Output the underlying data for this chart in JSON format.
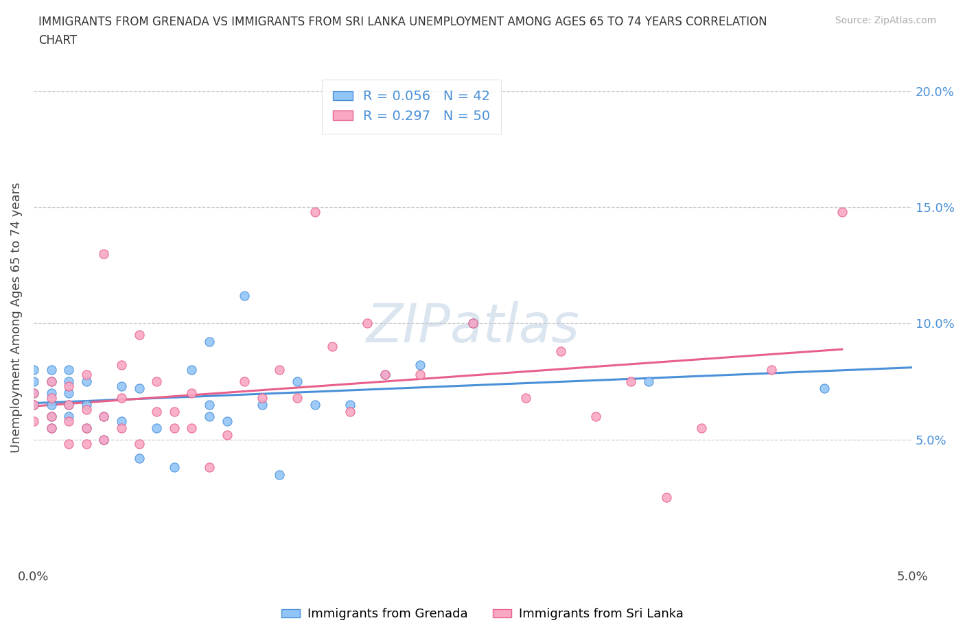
{
  "title": "IMMIGRANTS FROM GRENADA VS IMMIGRANTS FROM SRI LANKA UNEMPLOYMENT AMONG AGES 65 TO 74 YEARS CORRELATION\nCHART",
  "source_text": "Source: ZipAtlas.com",
  "ylabel": "Unemployment Among Ages 65 to 74 years",
  "watermark": "ZIPatlas",
  "xlim": [
    0.0,
    0.05
  ],
  "ylim": [
    -0.005,
    0.21
  ],
  "xtick_positions": [
    0.0,
    0.01,
    0.02,
    0.03,
    0.04,
    0.05
  ],
  "xtick_labels": [
    "0.0%",
    "",
    "",
    "",
    "",
    "5.0%"
  ],
  "ytick_positions": [
    0.0,
    0.05,
    0.1,
    0.15,
    0.2
  ],
  "ytick_labels_right": [
    "",
    "5.0%",
    "10.0%",
    "15.0%",
    "20.0%"
  ],
  "grenada_color": "#92C5F7",
  "srilanka_color": "#F9A8C4",
  "grenada_edge_color": "#4A90D9",
  "srilanka_edge_color": "#E8608A",
  "grenada_line_color": "#4A90D9",
  "srilanka_line_color": "#E8608A",
  "right_tick_color": "#4A90D9",
  "grenada_R": 0.056,
  "grenada_N": 42,
  "srilanka_R": 0.297,
  "srilanka_N": 50,
  "grenada_scatter_x": [
    0.0,
    0.0,
    0.0,
    0.0,
    0.001,
    0.001,
    0.001,
    0.001,
    0.001,
    0.001,
    0.002,
    0.002,
    0.002,
    0.002,
    0.002,
    0.003,
    0.003,
    0.003,
    0.004,
    0.004,
    0.005,
    0.005,
    0.006,
    0.006,
    0.007,
    0.008,
    0.009,
    0.01,
    0.01,
    0.01,
    0.011,
    0.012,
    0.013,
    0.014,
    0.015,
    0.016,
    0.018,
    0.02,
    0.022,
    0.025,
    0.035,
    0.045
  ],
  "grenada_scatter_y": [
    0.065,
    0.07,
    0.075,
    0.08,
    0.055,
    0.06,
    0.065,
    0.07,
    0.075,
    0.08,
    0.06,
    0.065,
    0.07,
    0.075,
    0.08,
    0.055,
    0.065,
    0.075,
    0.05,
    0.06,
    0.058,
    0.073,
    0.042,
    0.072,
    0.055,
    0.038,
    0.08,
    0.06,
    0.065,
    0.092,
    0.058,
    0.112,
    0.065,
    0.035,
    0.075,
    0.065,
    0.065,
    0.078,
    0.082,
    0.1,
    0.075,
    0.072
  ],
  "srilanka_scatter_x": [
    0.0,
    0.0,
    0.0,
    0.001,
    0.001,
    0.001,
    0.001,
    0.002,
    0.002,
    0.002,
    0.002,
    0.003,
    0.003,
    0.003,
    0.003,
    0.004,
    0.004,
    0.004,
    0.005,
    0.005,
    0.005,
    0.006,
    0.006,
    0.007,
    0.007,
    0.008,
    0.008,
    0.009,
    0.009,
    0.01,
    0.011,
    0.012,
    0.013,
    0.014,
    0.015,
    0.016,
    0.017,
    0.018,
    0.019,
    0.02,
    0.022,
    0.025,
    0.028,
    0.03,
    0.032,
    0.034,
    0.036,
    0.038,
    0.042,
    0.046
  ],
  "srilanka_scatter_y": [
    0.058,
    0.065,
    0.07,
    0.055,
    0.06,
    0.068,
    0.075,
    0.048,
    0.058,
    0.065,
    0.073,
    0.048,
    0.055,
    0.063,
    0.078,
    0.05,
    0.06,
    0.13,
    0.055,
    0.068,
    0.082,
    0.048,
    0.095,
    0.062,
    0.075,
    0.055,
    0.062,
    0.055,
    0.07,
    0.038,
    0.052,
    0.075,
    0.068,
    0.08,
    0.068,
    0.148,
    0.09,
    0.062,
    0.1,
    0.078,
    0.078,
    0.1,
    0.068,
    0.088,
    0.06,
    0.075,
    0.025,
    0.055,
    0.08,
    0.148
  ]
}
